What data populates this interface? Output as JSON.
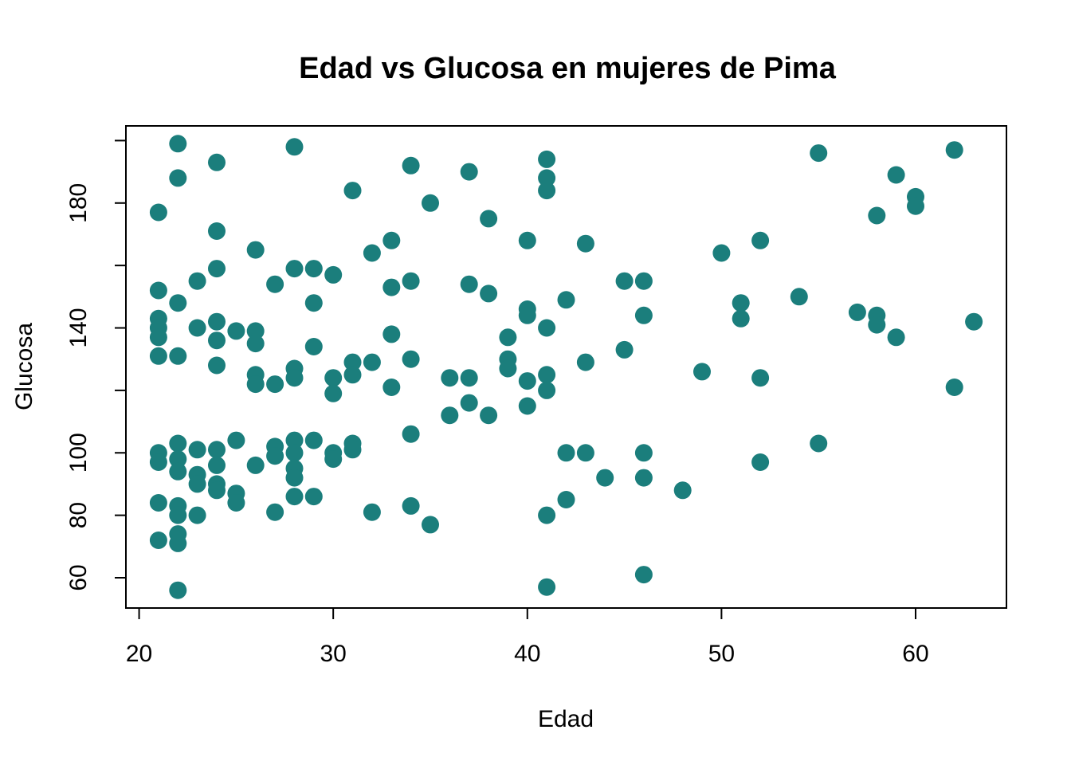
{
  "chart_data": {
    "type": "scatter",
    "title": "Edad vs Glucosa en mujeres de Pima",
    "xlabel": "Edad",
    "ylabel": "Glucosa",
    "point_color": "#1b7e7c",
    "axis_color": "#000000",
    "background_color": "#ffffff",
    "grid": "off",
    "legend": "none",
    "xlim": [
      19.32,
      64.68
    ],
    "ylim": [
      50.3,
      204.7
    ],
    "x_ticks": [
      20,
      30,
      40,
      50,
      60
    ],
    "x_tick_labels": [
      "20",
      "30",
      "40",
      "50",
      "60"
    ],
    "y_ticks": [
      60,
      80,
      100,
      120,
      140,
      160,
      180,
      200
    ],
    "y_tick_labels": {
      "60": "60",
      "80": "80",
      "100": "100",
      "140": "140",
      "180": "180"
    },
    "points": [
      [
        21,
        177
      ],
      [
        21,
        152
      ],
      [
        21,
        143
      ],
      [
        21,
        140
      ],
      [
        21,
        137
      ],
      [
        21,
        131
      ],
      [
        21,
        100
      ],
      [
        21,
        97
      ],
      [
        21,
        84
      ],
      [
        21,
        72
      ],
      [
        22,
        199
      ],
      [
        22,
        188
      ],
      [
        22,
        148
      ],
      [
        22,
        131
      ],
      [
        22,
        103
      ],
      [
        22,
        98
      ],
      [
        22,
        94
      ],
      [
        22,
        83
      ],
      [
        22,
        80
      ],
      [
        22,
        74
      ],
      [
        22,
        71
      ],
      [
        22,
        56
      ],
      [
        23,
        155
      ],
      [
        23,
        140
      ],
      [
        23,
        101
      ],
      [
        23,
        93
      ],
      [
        23,
        90
      ],
      [
        23,
        80
      ],
      [
        24,
        193
      ],
      [
        24,
        171
      ],
      [
        24,
        159
      ],
      [
        24,
        142
      ],
      [
        24,
        136
      ],
      [
        24,
        128
      ],
      [
        24,
        101
      ],
      [
        24,
        96
      ],
      [
        24,
        90
      ],
      [
        24,
        88
      ],
      [
        25,
        139
      ],
      [
        25,
        104
      ],
      [
        25,
        87
      ],
      [
        25,
        84
      ],
      [
        26,
        165
      ],
      [
        26,
        139
      ],
      [
        26,
        135
      ],
      [
        26,
        125
      ],
      [
        26,
        122
      ],
      [
        26,
        96
      ],
      [
        27,
        154
      ],
      [
        27,
        122
      ],
      [
        27,
        102
      ],
      [
        27,
        99
      ],
      [
        27,
        81
      ],
      [
        28,
        198
      ],
      [
        28,
        159
      ],
      [
        28,
        127
      ],
      [
        28,
        124
      ],
      [
        28,
        104
      ],
      [
        28,
        100
      ],
      [
        28,
        95
      ],
      [
        28,
        92
      ],
      [
        28,
        86
      ],
      [
        29,
        159
      ],
      [
        29,
        148
      ],
      [
        29,
        134
      ],
      [
        29,
        104
      ],
      [
        29,
        86
      ],
      [
        30,
        157
      ],
      [
        30,
        124
      ],
      [
        30,
        119
      ],
      [
        30,
        100
      ],
      [
        30,
        98
      ],
      [
        31,
        184
      ],
      [
        31,
        129
      ],
      [
        31,
        125
      ],
      [
        31,
        103
      ],
      [
        31,
        101
      ],
      [
        32,
        164
      ],
      [
        32,
        129
      ],
      [
        32,
        81
      ],
      [
        33,
        168
      ],
      [
        33,
        153
      ],
      [
        33,
        138
      ],
      [
        33,
        121
      ],
      [
        34,
        192
      ],
      [
        34,
        155
      ],
      [
        34,
        130
      ],
      [
        34,
        106
      ],
      [
        34,
        83
      ],
      [
        35,
        180
      ],
      [
        35,
        77
      ],
      [
        36,
        124
      ],
      [
        36,
        112
      ],
      [
        37,
        190
      ],
      [
        37,
        154
      ],
      [
        37,
        124
      ],
      [
        37,
        116
      ],
      [
        38,
        175
      ],
      [
        38,
        151
      ],
      [
        38,
        112
      ],
      [
        39,
        137
      ],
      [
        39,
        130
      ],
      [
        39,
        127
      ],
      [
        40,
        168
      ],
      [
        40,
        146
      ],
      [
        40,
        144
      ],
      [
        40,
        123
      ],
      [
        40,
        115
      ],
      [
        41,
        194
      ],
      [
        41,
        188
      ],
      [
        41,
        184
      ],
      [
        41,
        140
      ],
      [
        41,
        125
      ],
      [
        41,
        120
      ],
      [
        41,
        80
      ],
      [
        41,
        57
      ],
      [
        42,
        149
      ],
      [
        42,
        100
      ],
      [
        42,
        85
      ],
      [
        43,
        167
      ],
      [
        43,
        129
      ],
      [
        43,
        100
      ],
      [
        44,
        92
      ],
      [
        45,
        155
      ],
      [
        45,
        133
      ],
      [
        46,
        155
      ],
      [
        46,
        144
      ],
      [
        46,
        100
      ],
      [
        46,
        92
      ],
      [
        46,
        61
      ],
      [
        48,
        88
      ],
      [
        49,
        126
      ],
      [
        50,
        164
      ],
      [
        51,
        148
      ],
      [
        51,
        143
      ],
      [
        52,
        168
      ],
      [
        52,
        124
      ],
      [
        52,
        97
      ],
      [
        54,
        150
      ],
      [
        55,
        196
      ],
      [
        55,
        103
      ],
      [
        57,
        145
      ],
      [
        58,
        176
      ],
      [
        58,
        144
      ],
      [
        58,
        141
      ],
      [
        59,
        189
      ],
      [
        59,
        137
      ],
      [
        60,
        182
      ],
      [
        60,
        179
      ],
      [
        62,
        197
      ],
      [
        62,
        121
      ],
      [
        63,
        142
      ]
    ]
  }
}
